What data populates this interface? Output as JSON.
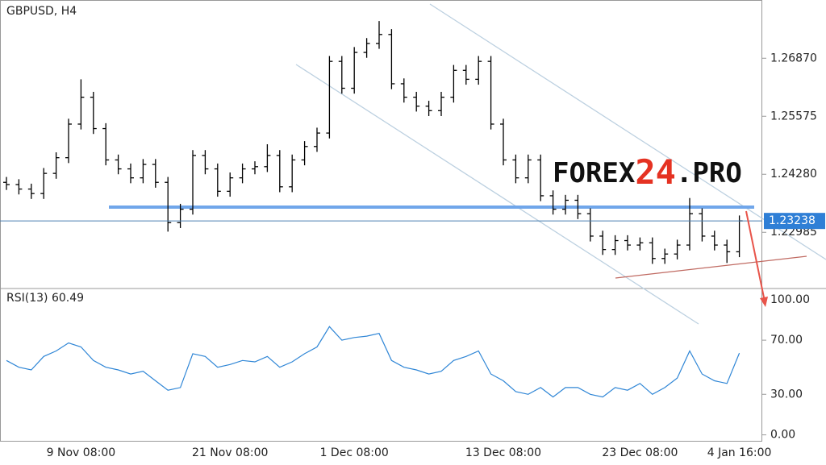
{
  "chart_data": [
    {
      "type": "ohlc",
      "title": "GBPUSD, H4",
      "watermark": [
        "FOREX",
        "24",
        ".PRO"
      ],
      "categories": [
        null,
        null,
        null,
        null,
        null,
        null,
        "9 Nov 08:00",
        null,
        null,
        null,
        null,
        null,
        null,
        null,
        null,
        null,
        null,
        null,
        "21 Nov 08:00",
        null,
        null,
        null,
        null,
        null,
        null,
        null,
        null,
        null,
        "1 Dec 08:00",
        null,
        null,
        null,
        null,
        null,
        null,
        null,
        null,
        null,
        null,
        null,
        "13 Dec 08:00",
        null,
        null,
        null,
        null,
        null,
        null,
        null,
        null,
        null,
        null,
        "23 Dec 08:00",
        null,
        null,
        null,
        null,
        null,
        null,
        null,
        "4 Jan 16:00"
      ],
      "open": [
        1.241,
        1.2405,
        1.2395,
        1.2385,
        1.243,
        1.2465,
        1.254,
        1.26,
        1.253,
        1.246,
        1.244,
        1.242,
        1.245,
        1.241,
        1.232,
        1.235,
        1.247,
        1.244,
        1.239,
        1.242,
        1.244,
        1.2445,
        1.247,
        1.24,
        1.246,
        1.249,
        1.252,
        1.268,
        1.262,
        1.27,
        1.272,
        1.274,
        1.263,
        1.26,
        1.258,
        1.257,
        1.26,
        1.266,
        1.264,
        1.268,
        1.254,
        1.246,
        1.242,
        1.246,
        1.238,
        1.235,
        1.237,
        1.234,
        1.229,
        1.226,
        1.228,
        1.227,
        1.2275,
        1.224,
        1.225,
        1.227,
        1.234,
        1.229,
        1.227,
        1.2255
      ],
      "high": [
        1.2422,
        1.2417,
        1.2407,
        1.2442,
        1.2477,
        1.2552,
        1.264,
        1.2612,
        1.2542,
        1.2472,
        1.2452,
        1.2462,
        1.2462,
        1.2422,
        1.2362,
        1.2482,
        1.2482,
        1.2452,
        1.2432,
        1.2452,
        1.2457,
        1.2495,
        1.2482,
        1.2472,
        1.2502,
        1.2532,
        1.2692,
        1.2692,
        1.2712,
        1.2732,
        1.277,
        1.2752,
        1.2642,
        1.2612,
        1.2592,
        1.2612,
        1.2672,
        1.2672,
        1.2692,
        1.2692,
        1.2552,
        1.2472,
        1.2472,
        1.2472,
        1.2392,
        1.2382,
        1.2382,
        1.2352,
        1.2302,
        1.2292,
        1.2292,
        1.2287,
        1.2287,
        1.2262,
        1.2282,
        1.2375,
        1.2352,
        1.2302,
        1.2282,
        1.2336
      ],
      "low": [
        1.2393,
        1.2383,
        1.2373,
        1.2373,
        1.2418,
        1.2453,
        1.2528,
        1.2518,
        1.2448,
        1.2428,
        1.2408,
        1.2408,
        1.2398,
        1.23,
        1.2308,
        1.2338,
        1.2428,
        1.2378,
        1.2378,
        1.2408,
        1.2428,
        1.2433,
        1.2388,
        1.2388,
        1.2448,
        1.2478,
        1.2508,
        1.2608,
        1.2608,
        1.2688,
        1.2708,
        1.2618,
        1.2588,
        1.2568,
        1.2558,
        1.2558,
        1.2588,
        1.2628,
        1.2628,
        1.2528,
        1.2448,
        1.2408,
        1.2408,
        1.2368,
        1.2338,
        1.2338,
        1.2328,
        1.2278,
        1.2248,
        1.2248,
        1.2258,
        1.2258,
        1.2228,
        1.2228,
        1.2238,
        1.2258,
        1.2278,
        1.2258,
        1.223,
        1.2243
      ],
      "close": [
        1.2405,
        1.2395,
        1.2385,
        1.243,
        1.2465,
        1.254,
        1.26,
        1.253,
        1.246,
        1.244,
        1.242,
        1.245,
        1.241,
        1.232,
        1.235,
        1.247,
        1.244,
        1.239,
        1.242,
        1.244,
        1.2445,
        1.247,
        1.24,
        1.246,
        1.249,
        1.252,
        1.268,
        1.262,
        1.27,
        1.272,
        1.274,
        1.263,
        1.26,
        1.258,
        1.257,
        1.26,
        1.266,
        1.264,
        1.268,
        1.254,
        1.246,
        1.242,
        1.246,
        1.238,
        1.235,
        1.237,
        1.234,
        1.229,
        1.226,
        1.228,
        1.227,
        1.2275,
        1.224,
        1.225,
        1.227,
        1.234,
        1.229,
        1.227,
        1.2255,
        1.2324
      ],
      "color": "#000000",
      "current_price": {
        "value": 1.23238,
        "label": "1.23238"
      },
      "ylim": [
        1.2173,
        1.2817
      ],
      "yticks": [
        {
          "value": 1.2687,
          "label": "1.26870"
        },
        {
          "value": 1.25575,
          "label": "1.25575"
        },
        {
          "value": 1.2428,
          "label": "1.24280"
        },
        {
          "value": 1.22985,
          "label": "1.22985"
        }
      ]
    },
    {
      "type": "line",
      "title": "RSI(13)",
      "color": "#2f86d6",
      "values": [
        55,
        50,
        48,
        58,
        62,
        68,
        65,
        55,
        50,
        48,
        45,
        47,
        40,
        33,
        35,
        60,
        58,
        50,
        52,
        55,
        54,
        58,
        50,
        54,
        60,
        65,
        80,
        70,
        72,
        73,
        75,
        55,
        50,
        48,
        45,
        47,
        55,
        58,
        62,
        45,
        40,
        32,
        30,
        35,
        28,
        35,
        35,
        30,
        28,
        35,
        33,
        38,
        30,
        35,
        42,
        62,
        45,
        40,
        38,
        60.49
      ],
      "ylim": [
        -5,
        107
      ],
      "yticks": [
        {
          "value": 100,
          "label": "100.00"
        },
        {
          "value": 70,
          "label": "70.00"
        },
        {
          "value": 30,
          "label": "30.00"
        },
        {
          "value": 0,
          "label": "0.00"
        }
      ]
    }
  ]
}
